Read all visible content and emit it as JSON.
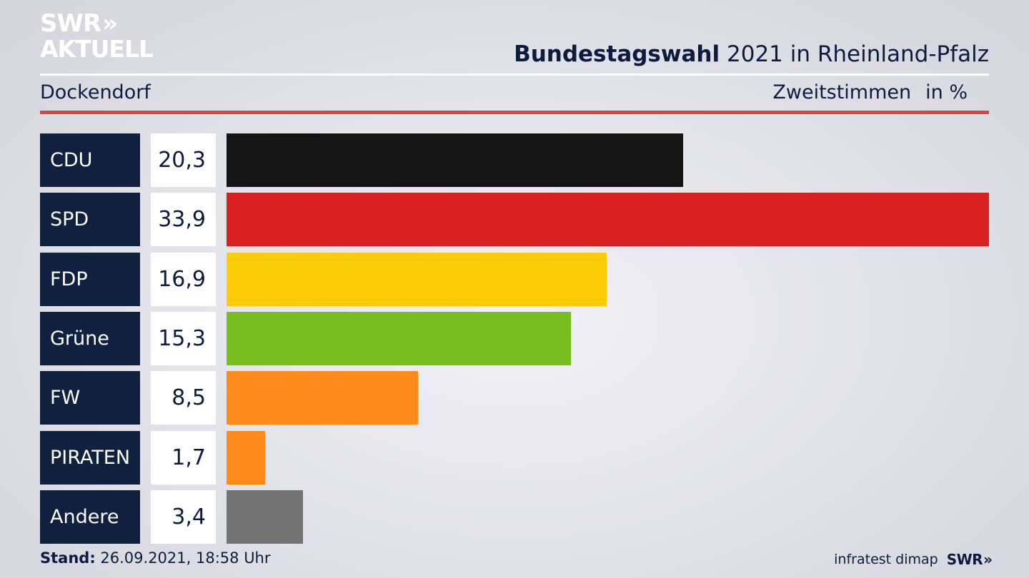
{
  "header": {
    "logo_line1": "SWR",
    "logo_line2": "AKTUELL",
    "logo_chevrons": "»",
    "title_bold": "Bundestagswahl",
    "title_rest": "2021 in Rheinland-Pfalz",
    "place": "Dockendorf",
    "metric": "Zweitstimmen",
    "unit": "in %"
  },
  "chart_data": {
    "type": "bar",
    "orientation": "horizontal",
    "title": "Bundestagswahl 2021 in Rheinland-Pfalz",
    "subtitle": "Dockendorf",
    "xlabel": "Zweitstimmen in %",
    "ylabel": "",
    "grid": false,
    "categories": [
      "CDU",
      "SPD",
      "FDP",
      "Grüne",
      "FW",
      "PIRATEN",
      "Andere"
    ],
    "values": [
      20.3,
      33.9,
      16.9,
      15.3,
      8.5,
      1.7,
      3.4
    ],
    "labels": [
      "20,3",
      "33,9",
      "16,9",
      "15,3",
      "8,5",
      "1,7",
      "3,4"
    ],
    "colors": [
      "#141414",
      "#d7201f",
      "#ffcc0a",
      "#78be1d",
      "#ff8c1a",
      "#ff8c1a",
      "#737373"
    ],
    "xlim": [
      0,
      33.9
    ]
  },
  "footer": {
    "stand_label": "Stand:",
    "stand_value": "26.09.2021, 18:58 Uhr",
    "source": "infratest dimap",
    "brand": "SWR",
    "brand_chevrons": "»"
  }
}
